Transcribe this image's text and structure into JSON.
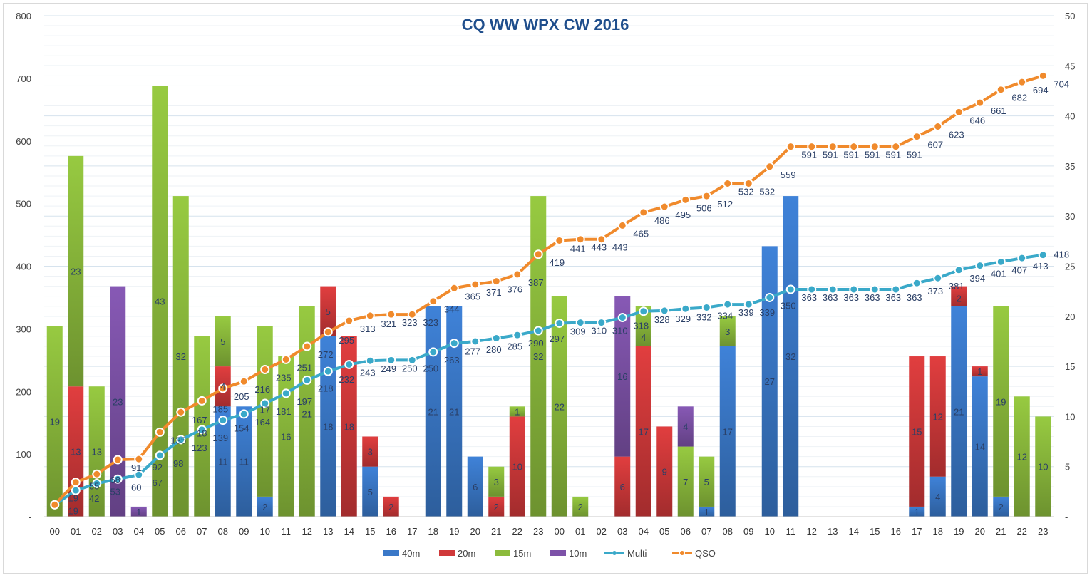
{
  "chart_data": {
    "type": "bar",
    "title": "CQ WW WPX CW  2016",
    "categories": [
      "00",
      "01",
      "02",
      "03",
      "04",
      "05",
      "06",
      "07",
      "08",
      "09",
      "10",
      "11",
      "12",
      "13",
      "14",
      "15",
      "16",
      "17",
      "18",
      "19",
      "20",
      "21",
      "22",
      "23",
      "00",
      "01",
      "02",
      "03",
      "04",
      "05",
      "06",
      "07",
      "08",
      "09",
      "10",
      "11",
      "12",
      "13",
      "14",
      "15",
      "16",
      "17",
      "18",
      "19",
      "20",
      "21",
      "22",
      "23"
    ],
    "stacked": true,
    "series": [
      {
        "name": "40m",
        "type": "bar",
        "axis": "right",
        "color": "#3a78c8",
        "values": [
          0,
          0,
          0,
          0,
          0,
          0,
          0,
          0,
          11,
          11,
          2,
          0,
          0,
          18,
          0,
          5,
          0,
          0,
          21,
          21,
          6,
          0,
          0,
          0,
          0,
          0,
          0,
          0,
          0,
          0,
          0,
          1,
          17,
          0,
          27,
          32,
          0,
          0,
          0,
          0,
          0,
          1,
          4,
          21,
          14,
          2,
          0,
          0
        ]
      },
      {
        "name": "20m",
        "type": "bar",
        "axis": "right",
        "color": "#d0393a",
        "values": [
          0,
          13,
          0,
          0,
          0,
          0,
          0,
          0,
          4,
          0,
          0,
          0,
          0,
          5,
          18,
          3,
          2,
          0,
          0,
          0,
          0,
          2,
          10,
          0,
          0,
          0,
          0,
          6,
          17,
          9,
          0,
          0,
          0,
          0,
          0,
          0,
          0,
          0,
          0,
          0,
          0,
          15,
          12,
          2,
          1,
          0,
          0,
          0
        ]
      },
      {
        "name": "15m",
        "type": "bar",
        "axis": "right",
        "color": "#8cbb3c",
        "values": [
          19,
          23,
          13,
          0,
          0,
          43,
          32,
          18,
          5,
          0,
          17,
          16,
          21,
          0,
          0,
          0,
          0,
          0,
          0,
          0,
          0,
          3,
          1,
          32,
          22,
          2,
          0,
          0,
          4,
          0,
          7,
          5,
          3,
          0,
          0,
          0,
          0,
          0,
          0,
          0,
          0,
          0,
          0,
          0,
          0,
          19,
          12,
          10
        ]
      },
      {
        "name": "10m",
        "type": "bar",
        "axis": "right",
        "color": "#7d52a8",
        "values": [
          0,
          0,
          0,
          23,
          1,
          0,
          0,
          0,
          0,
          0,
          0,
          0,
          0,
          0,
          0,
          0,
          0,
          0,
          0,
          0,
          0,
          0,
          0,
          0,
          0,
          0,
          0,
          16,
          0,
          0,
          4,
          0,
          0,
          0,
          0,
          0,
          0,
          0,
          0,
          0,
          0,
          0,
          0,
          0,
          0,
          0,
          0,
          0
        ]
      },
      {
        "name": "Multi",
        "type": "line",
        "axis": "left",
        "color": "#3aa9c9",
        "values": [
          19,
          42,
          53,
          60,
          67,
          98,
          123,
          139,
          154,
          164,
          181,
          197,
          218,
          232,
          243,
          249,
          250,
          250,
          263,
          277,
          280,
          285,
          290,
          297,
          309,
          310,
          310,
          318,
          328,
          329,
          332,
          334,
          339,
          339,
          350,
          363,
          363,
          363,
          363,
          363,
          363,
          373,
          381,
          394,
          401,
          407,
          413,
          418
        ]
      },
      {
        "name": "QSO",
        "type": "line",
        "axis": "left",
        "color": "#f08a2c",
        "values": [
          19,
          55,
          68,
          91,
          92,
          135,
          167,
          185,
          205,
          216,
          235,
          251,
          272,
          295,
          313,
          321,
          323,
          323,
          344,
          365,
          371,
          376,
          387,
          419,
          441,
          443,
          443,
          465,
          486,
          495,
          506,
          512,
          532,
          532,
          559,
          591,
          591,
          591,
          591,
          591,
          591,
          607,
          623,
          646,
          661,
          682,
          694,
          704
        ]
      }
    ],
    "y_left": {
      "range": [
        0,
        800
      ],
      "ticks": [
        "-",
        "100",
        "200",
        "300",
        "400",
        "500",
        "600",
        "700",
        "800"
      ]
    },
    "y_right": {
      "range": [
        0,
        50
      ],
      "ticks": [
        "-",
        "5",
        "10",
        "15",
        "20",
        "25",
        "30",
        "35",
        "40",
        "45",
        "50"
      ]
    },
    "grid": true,
    "legend_position": "bottom",
    "title_color": "#1f4e8c"
  }
}
